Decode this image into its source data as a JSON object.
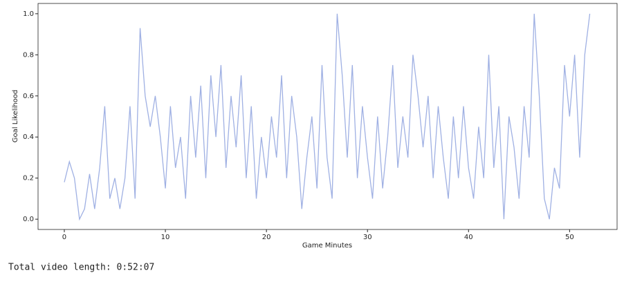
{
  "chart_data": {
    "type": "line",
    "xlabel": "Game Minutes",
    "ylabel": "Goal Likelihood",
    "x": [
      0,
      0.5,
      1,
      1.5,
      2,
      2.5,
      3,
      3.5,
      4,
      4.5,
      5,
      5.5,
      6,
      6.5,
      7,
      7.5,
      8,
      8.5,
      9,
      9.5,
      10,
      10.5,
      11,
      11.5,
      12,
      12.5,
      13,
      13.5,
      14,
      14.5,
      15,
      15.5,
      16,
      16.5,
      17,
      17.5,
      18,
      18.5,
      19,
      19.5,
      20,
      20.5,
      21,
      21.5,
      22,
      22.5,
      23,
      23.5,
      24,
      24.5,
      25,
      25.5,
      26,
      26.5,
      27,
      27.5,
      28,
      28.5,
      29,
      29.5,
      30,
      30.5,
      31,
      31.5,
      32,
      32.5,
      33,
      33.5,
      34,
      34.5,
      35,
      35.5,
      36,
      36.5,
      37,
      37.5,
      38,
      38.5,
      39,
      39.5,
      40,
      40.5,
      41,
      41.5,
      42,
      42.5,
      43,
      43.5,
      44,
      44.5,
      45,
      45.5,
      46,
      46.5,
      47,
      47.5,
      48,
      48.5,
      49,
      49.5,
      50,
      50.5,
      51,
      51.5,
      52
    ],
    "series": [
      {
        "color": "#9fb0e3",
        "values": [
          0.18,
          0.28,
          0.2,
          0.0,
          0.05,
          0.22,
          0.05,
          0.25,
          0.55,
          0.1,
          0.2,
          0.05,
          0.2,
          0.55,
          0.1,
          0.93,
          0.6,
          0.45,
          0.6,
          0.4,
          0.15,
          0.55,
          0.25,
          0.4,
          0.1,
          0.6,
          0.3,
          0.65,
          0.2,
          0.7,
          0.4,
          0.75,
          0.25,
          0.6,
          0.35,
          0.7,
          0.2,
          0.55,
          0.1,
          0.4,
          0.2,
          0.5,
          0.3,
          0.7,
          0.2,
          0.6,
          0.4,
          0.05,
          0.3,
          0.5,
          0.15,
          0.75,
          0.3,
          0.1,
          1.0,
          0.7,
          0.3,
          0.75,
          0.2,
          0.55,
          0.3,
          0.1,
          0.5,
          0.15,
          0.4,
          0.75,
          0.25,
          0.5,
          0.3,
          0.8,
          0.6,
          0.35,
          0.6,
          0.2,
          0.55,
          0.3,
          0.1,
          0.5,
          0.2,
          0.55,
          0.25,
          0.1,
          0.45,
          0.2,
          0.8,
          0.25,
          0.55,
          0.0,
          0.5,
          0.35,
          0.1,
          0.55,
          0.3,
          1.0,
          0.6,
          0.1,
          0.0,
          0.25,
          0.15,
          0.75,
          0.5,
          0.8,
          0.3,
          0.8,
          1.0
        ]
      }
    ],
    "xlim": [
      -2.6,
      54.7
    ],
    "xticks": [
      0,
      10,
      20,
      30,
      40,
      50
    ],
    "ylim": [
      -0.05,
      1.05
    ],
    "yticks": [
      {
        "value": 0,
        "label": "0.0"
      },
      0.2,
      0.4,
      0.6,
      0.8,
      {
        "value": 1,
        "label": "1.0"
      }
    ],
    "output_text": "Total video length: 0:52:07"
  }
}
